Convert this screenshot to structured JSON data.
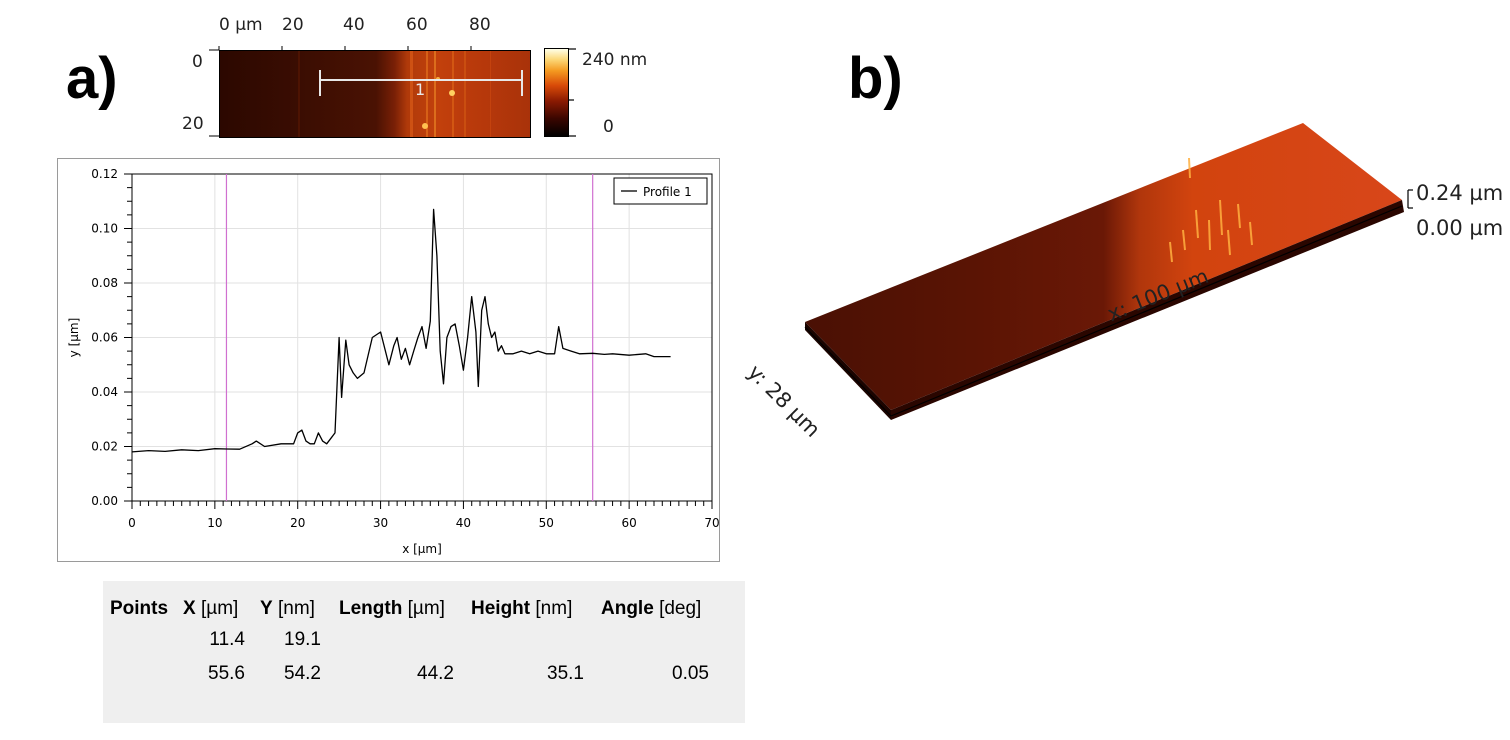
{
  "panels": {
    "a": "a)",
    "b": "b)"
  },
  "afm_map": {
    "x_ticks": [
      "0 µm",
      "20",
      "40",
      "60",
      "80"
    ],
    "y_ticks": [
      "0",
      "20"
    ],
    "profile_label": "1",
    "scale_max": "240 nm",
    "scale_min": "0",
    "colors": {
      "dark": "#2a0800",
      "mid": "#6b1a05",
      "bright": "#c23a0c",
      "highlight": "#f0a020",
      "peak": "#ffffb0"
    }
  },
  "chart_data": {
    "type": "line",
    "title": "",
    "xlabel": "x [µm]",
    "ylabel": "y [µm]",
    "xlim": [
      0,
      70
    ],
    "ylim": [
      0,
      0.12
    ],
    "x_ticks": [
      "0",
      "10",
      "20",
      "30",
      "40",
      "50",
      "60",
      "70"
    ],
    "y_ticks": [
      "0.00",
      "0.02",
      "0.04",
      "0.06",
      "0.08",
      "0.10",
      "0.12"
    ],
    "grid": true,
    "legend_position": "top-right",
    "markers_x": [
      11.4,
      55.6
    ],
    "marker_color": "#d070d0",
    "series": [
      {
        "name": "Profile 1",
        "color": "#000000",
        "x": [
          0,
          2,
          4,
          6,
          8,
          10,
          11.4,
          13,
          14.5,
          15,
          16,
          18,
          19.5,
          20,
          20.5,
          21,
          21.5,
          22,
          22.5,
          23,
          23.5,
          24,
          24.5,
          25,
          25.3,
          25.8,
          26.2,
          26.7,
          27.2,
          28,
          29,
          30,
          31,
          31.6,
          32,
          32.5,
          33,
          33.5,
          34,
          34.5,
          35,
          35.5,
          36,
          36.4,
          36.8,
          37.2,
          37.6,
          38,
          38.5,
          39,
          39.5,
          40,
          40.5,
          41,
          41.5,
          41.8,
          42.2,
          42.6,
          43,
          43.4,
          43.8,
          44.2,
          44.6,
          45,
          46,
          47,
          48,
          49,
          50,
          51,
          51.5,
          52,
          53,
          54,
          55.6,
          57,
          58,
          60,
          62,
          63,
          65
        ],
        "y": [
          0.018,
          0.0185,
          0.0182,
          0.0188,
          0.0185,
          0.0192,
          0.0191,
          0.019,
          0.021,
          0.022,
          0.02,
          0.021,
          0.021,
          0.025,
          0.026,
          0.022,
          0.021,
          0.021,
          0.025,
          0.022,
          0.021,
          0.023,
          0.025,
          0.06,
          0.038,
          0.059,
          0.05,
          0.047,
          0.045,
          0.047,
          0.06,
          0.062,
          0.05,
          0.057,
          0.06,
          0.052,
          0.056,
          0.05,
          0.055,
          0.06,
          0.064,
          0.056,
          0.066,
          0.107,
          0.09,
          0.055,
          0.043,
          0.06,
          0.064,
          0.065,
          0.057,
          0.048,
          0.06,
          0.075,
          0.062,
          0.042,
          0.07,
          0.075,
          0.065,
          0.06,
          0.062,
          0.055,
          0.057,
          0.054,
          0.054,
          0.055,
          0.054,
          0.055,
          0.054,
          0.054,
          0.064,
          0.056,
          0.055,
          0.054,
          0.0542,
          0.0538,
          0.054,
          0.0535,
          0.054,
          0.053,
          0.053
        ]
      }
    ]
  },
  "table": {
    "headers": [
      {
        "name": "Points",
        "unit": ""
      },
      {
        "name": "X",
        "unit": "[µm]"
      },
      {
        "name": "Y",
        "unit": "[nm]"
      },
      {
        "name": "Length",
        "unit": "[µm]"
      },
      {
        "name": "Height",
        "unit": "[nm]"
      },
      {
        "name": "Angle",
        "unit": "[deg]"
      }
    ],
    "rows": [
      {
        "x": "11.4",
        "y": "19.1",
        "length": "",
        "height": "",
        "angle": ""
      },
      {
        "x": "55.6",
        "y": "54.2",
        "length": "44.2",
        "height": "35.1",
        "angle": "0.05"
      }
    ]
  },
  "surface_3d": {
    "x_label": "x: 100 µm",
    "y_label": "y: 28 µm",
    "z_max": "0.24 µm",
    "z_min": "0.00 µm"
  }
}
